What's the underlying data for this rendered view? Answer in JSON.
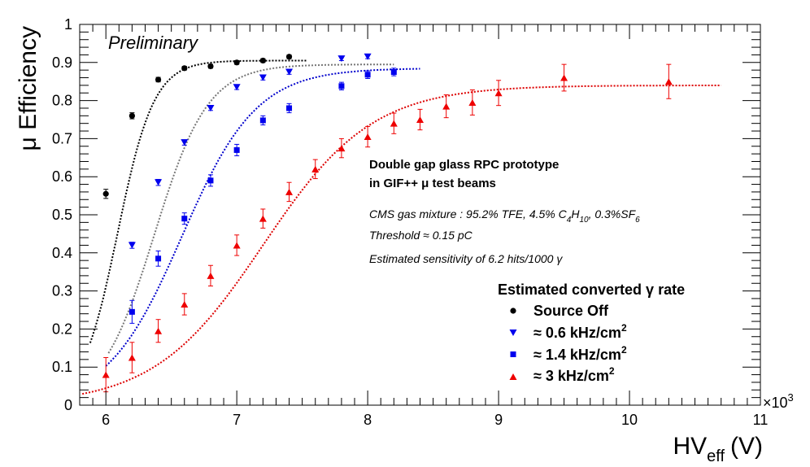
{
  "chart_data": {
    "type": "scatter",
    "xlabel": "HV",
    "xlabel_sub": "eff",
    "xlabel_unit": "(V)",
    "x_multiplier": "×10",
    "x_multiplier_exp": "3",
    "ylabel": "μ Efficiency",
    "xlim": [
      5.8,
      11.0
    ],
    "ylim": [
      0,
      1
    ],
    "x_ticks": [
      "6",
      "7",
      "8",
      "9",
      "10",
      "11"
    ],
    "y_ticks": [
      "0",
      "0.1",
      "0.2",
      "0.3",
      "0.4",
      "0.5",
      "0.6",
      "0.7",
      "0.8",
      "0.9",
      "1"
    ],
    "grid": false,
    "legend_position": "bottom-right",
    "annotations": {
      "preliminary": "Preliminary",
      "title_line1": "Double gap glass RPC prototype",
      "title_line2": "in GIF++ μ test beams",
      "gas_prefix": "CMS gas mixture : 95.2% TFE, 4.5% C",
      "gas_c4": "4",
      "gas_h": "H",
      "gas_h10": "10",
      "gas_mid": ", 0.3%SF",
      "gas_sf6": "6",
      "threshold": "Threshold ≈ 0.15 pC",
      "sensitivity": "Estimated sensitivity of 6.2 hits/1000 γ"
    },
    "legend_title": "Estimated converted γ rate",
    "series": [
      {
        "name": "Source Off",
        "label_main": "Source Off",
        "label_sup": "",
        "color": "#000000",
        "fit_color": "#000000",
        "marker": "circle",
        "x": [
          6.0,
          6.2,
          6.4,
          6.6,
          6.8,
          7.0,
          7.2,
          7.4
        ],
        "y": [
          0.555,
          0.76,
          0.855,
          0.885,
          0.89,
          0.9,
          0.905,
          0.915
        ],
        "err": [
          0.012,
          0.008,
          0.006,
          0.005,
          0.005,
          0.005,
          0.005,
          0.005
        ],
        "fit": {
          "plateau": 0.905,
          "mid": 6.09,
          "slope": 7.2,
          "range": [
            5.88,
            7.55
          ]
        }
      },
      {
        "name": "≈ 0.6 kHz/cm2",
        "label_main": "≈ 0.6 kHz/cm",
        "label_sup": "2",
        "color": "#0000ee",
        "fit_color": "#777777",
        "marker": "triangle-down",
        "x": [
          6.2,
          6.4,
          6.6,
          6.8,
          7.0,
          7.2,
          7.4,
          7.8,
          8.0
        ],
        "y": [
          0.42,
          0.585,
          0.69,
          0.78,
          0.835,
          0.86,
          0.875,
          0.91,
          0.915
        ],
        "err": [
          0.008,
          0.008,
          0.007,
          0.006,
          0.006,
          0.006,
          0.006,
          0.005,
          0.005
        ],
        "fit": {
          "plateau": 0.895,
          "mid": 6.37,
          "slope": 4.9,
          "range": [
            6.02,
            8.2
          ]
        }
      },
      {
        "name": "≈ 1.4 kHz/cm2",
        "label_main": "≈ 1.4 kHz/cm",
        "label_sup": "2",
        "color": "#0000ee",
        "fit_color": "#0000cc",
        "marker": "square",
        "x": [
          6.2,
          6.4,
          6.6,
          6.8,
          7.0,
          7.2,
          7.4,
          7.8,
          8.0,
          8.2
        ],
        "y": [
          0.245,
          0.385,
          0.49,
          0.59,
          0.67,
          0.748,
          0.78,
          0.838,
          0.868,
          0.875
        ],
        "err": [
          0.03,
          0.02,
          0.015,
          0.015,
          0.015,
          0.012,
          0.012,
          0.01,
          0.01,
          0.01
        ],
        "fit": {
          "plateau": 0.885,
          "mid": 6.58,
          "slope": 3.5,
          "range": [
            6.0,
            8.4
          ]
        }
      },
      {
        "name": "≈ 3 kHz/cm2",
        "label_main": "≈ 3 kHz/cm",
        "label_sup": "2",
        "color": "#ee0000",
        "fit_color": "#dd0000",
        "marker": "triangle-up",
        "x": [
          6.0,
          6.2,
          6.4,
          6.6,
          6.8,
          7.0,
          7.2,
          7.4,
          7.6,
          7.8,
          8.0,
          8.2,
          8.4,
          8.6,
          8.8,
          9.0,
          9.5,
          10.3
        ],
        "y": [
          0.08,
          0.125,
          0.195,
          0.265,
          0.34,
          0.42,
          0.49,
          0.56,
          0.62,
          0.675,
          0.705,
          0.74,
          0.75,
          0.785,
          0.795,
          0.82,
          0.86,
          0.85
        ],
        "err": [
          0.045,
          0.04,
          0.03,
          0.028,
          0.027,
          0.027,
          0.025,
          0.025,
          0.025,
          0.025,
          0.027,
          0.027,
          0.027,
          0.03,
          0.033,
          0.033,
          0.035,
          0.045
        ],
        "fit": {
          "plateau": 0.84,
          "mid": 7.2,
          "slope": 2.4,
          "range": [
            5.82,
            10.7
          ]
        }
      }
    ]
  }
}
